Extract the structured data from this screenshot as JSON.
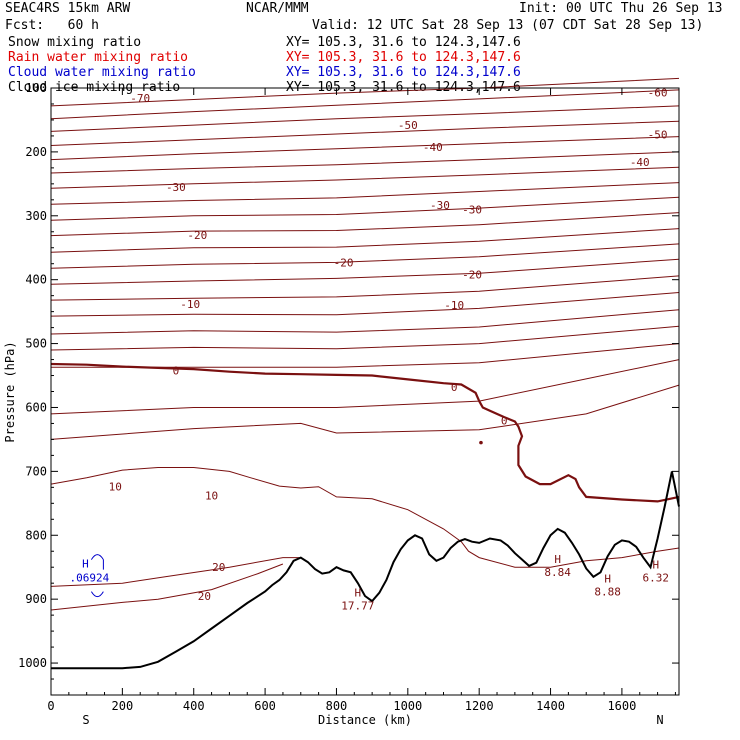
{
  "header": {
    "model": "SEAC4RS 15km ARW",
    "source": "NCAR/MMM",
    "init": "Init: 00 UTC Thu 26 Sep 13",
    "fcst": "Fcst:   60 h",
    "valid": "Valid: 12 UTC Sat 28 Sep 13 (07 CDT Sat 28 Sep 13)",
    "fields": [
      {
        "name": "Snow mixing ratio",
        "xy": "XY= 105.3, 31.6 to 124.3,147.6",
        "color": "#000000"
      },
      {
        "name": "Rain water mixing ratio",
        "xy": "XY= 105.3, 31.6 to 124.3,147.6",
        "color": "#e00000"
      },
      {
        "name": "Cloud water mixing ratio",
        "xy": "XY= 105.3, 31.6 to 124.3,147.6",
        "color": "#0000cc"
      },
      {
        "name": "Cloud ice mixing ratio",
        "xy": "XY= 105.3, 31.6 to 124.3,147.6",
        "color": "#000000"
      }
    ]
  },
  "chart_data": {
    "type": "line",
    "xlabel": "Distance (km)",
    "ylabel": "Pressure (hPa)",
    "xlim": [
      0,
      1760
    ],
    "ylim": [
      1050,
      100
    ],
    "xticks": [
      0,
      200,
      400,
      600,
      800,
      1000,
      1200,
      1400,
      1600
    ],
    "yticks": [
      200,
      300,
      400,
      500,
      600,
      700,
      800,
      900,
      1000
    ],
    "ytick_top_label": "100",
    "endpoint_labels": {
      "left": "S",
      "right": "N"
    },
    "contour_color": "#7a1010",
    "terrain_color": "#000000",
    "isotherms": [
      {
        "points": [
          [
            0,
            128
          ],
          [
            400,
            118
          ],
          [
            800,
            108
          ],
          [
            1200,
            100
          ],
          [
            1760,
            85
          ]
        ],
        "label": "-70",
        "label_at": [
          250,
          116
        ]
      },
      {
        "points": [
          [
            0,
            148
          ],
          [
            400,
            137
          ],
          [
            800,
            127
          ],
          [
            1200,
            117
          ],
          [
            1760,
            103
          ]
        ],
        "label": "-60",
        "label_at": [
          1700,
          107
        ]
      },
      {
        "points": [
          [
            0,
            168
          ],
          [
            400,
            158
          ],
          [
            800,
            148
          ],
          [
            1200,
            140
          ],
          [
            1760,
            128
          ]
        ]
      },
      {
        "points": [
          [
            0,
            190
          ],
          [
            400,
            181
          ],
          [
            800,
            172
          ],
          [
            1200,
            163
          ],
          [
            1760,
            152
          ]
        ],
        "label": "-50",
        "label_at": [
          1000,
          158
        ]
      },
      {
        "points": [
          [
            0,
            212
          ],
          [
            400,
            203
          ],
          [
            800,
            195
          ],
          [
            1200,
            187
          ],
          [
            1760,
            176
          ]
        ],
        "label": "-50",
        "label_at": [
          1700,
          173
        ]
      },
      {
        "points": [
          [
            0,
            233
          ],
          [
            400,
            226
          ],
          [
            800,
            220
          ],
          [
            1200,
            212
          ],
          [
            1760,
            200
          ]
        ],
        "label": "-40",
        "label_at": [
          1070,
          192
        ]
      },
      {
        "points": [
          [
            0,
            257
          ],
          [
            400,
            250
          ],
          [
            800,
            244
          ],
          [
            1200,
            236
          ],
          [
            1760,
            224
          ]
        ],
        "label": "-40",
        "label_at": [
          1650,
          216
        ]
      },
      {
        "points": [
          [
            0,
            282
          ],
          [
            400,
            276
          ],
          [
            800,
            272
          ],
          [
            1200,
            262
          ],
          [
            1760,
            248
          ]
        ],
        "label": "-30",
        "label_at": [
          350,
          255
        ]
      },
      {
        "points": [
          [
            0,
            307
          ],
          [
            400,
            300
          ],
          [
            800,
            298
          ],
          [
            1200,
            288
          ],
          [
            1760,
            271
          ]
        ],
        "label": "-30",
        "label_at": [
          1090,
          283
        ]
      },
      {
        "points": [
          [
            0,
            331
          ],
          [
            400,
            324
          ],
          [
            800,
            323
          ],
          [
            1200,
            314
          ],
          [
            1760,
            295
          ]
        ],
        "label": "-30",
        "label_at": [
          1180,
          290
        ]
      },
      {
        "points": [
          [
            0,
            357
          ],
          [
            400,
            350
          ],
          [
            800,
            349
          ],
          [
            1200,
            340
          ],
          [
            1760,
            320
          ]
        ],
        "label": "-20",
        "label_at": [
          410,
          330
        ]
      },
      {
        "points": [
          [
            0,
            382
          ],
          [
            400,
            376
          ],
          [
            800,
            373
          ],
          [
            1200,
            364
          ],
          [
            1760,
            344
          ]
        ],
        "label": "-20",
        "label_at": [
          820,
          373
        ]
      },
      {
        "points": [
          [
            0,
            407
          ],
          [
            400,
            402
          ],
          [
            800,
            398
          ],
          [
            1200,
            390
          ],
          [
            1760,
            368
          ]
        ],
        "label": "-20",
        "label_at": [
          1180,
          392
        ]
      },
      {
        "points": [
          [
            0,
            432
          ],
          [
            400,
            429
          ],
          [
            800,
            427
          ],
          [
            1200,
            418
          ],
          [
            1760,
            394
          ]
        ],
        "label": "-10",
        "label_at": [
          390,
          438
        ]
      },
      {
        "points": [
          [
            0,
            457
          ],
          [
            400,
            454
          ],
          [
            800,
            455
          ],
          [
            1200,
            445
          ],
          [
            1760,
            420
          ]
        ],
        "label": "-10",
        "label_at": [
          1130,
          440
        ]
      },
      {
        "points": [
          [
            0,
            485
          ],
          [
            400,
            480
          ],
          [
            800,
            482
          ],
          [
            1200,
            474
          ],
          [
            1760,
            447
          ]
        ]
      },
      {
        "points": [
          [
            0,
            510
          ],
          [
            400,
            506
          ],
          [
            800,
            508
          ],
          [
            1200,
            500
          ],
          [
            1760,
            473
          ]
        ]
      },
      {
        "points": [
          [
            0,
            537
          ],
          [
            400,
            537
          ],
          [
            800,
            537
          ],
          [
            1200,
            530
          ],
          [
            1760,
            500
          ]
        ]
      },
      {
        "points": [
          [
            0,
            610
          ],
          [
            400,
            600
          ],
          [
            800,
            600
          ],
          [
            1200,
            590
          ],
          [
            1760,
            525
          ]
        ]
      },
      {
        "points": [
          [
            0,
            650
          ],
          [
            400,
            633
          ],
          [
            700,
            625
          ],
          [
            800,
            640
          ],
          [
            1200,
            635
          ],
          [
            1500,
            610
          ],
          [
            1760,
            565
          ]
        ]
      },
      {
        "points": [
          [
            0,
            720
          ],
          [
            100,
            710
          ],
          [
            200,
            698
          ],
          [
            300,
            694
          ],
          [
            400,
            694
          ],
          [
            500,
            700
          ],
          [
            560,
            710
          ],
          [
            640,
            723
          ],
          [
            700,
            726
          ],
          [
            750,
            724
          ],
          [
            800,
            740
          ],
          [
            900,
            743
          ],
          [
            1000,
            760
          ],
          [
            1100,
            790
          ],
          [
            1150,
            810
          ],
          [
            1170,
            825
          ],
          [
            1200,
            835
          ],
          [
            1300,
            850
          ],
          [
            1400,
            850
          ],
          [
            1500,
            840
          ],
          [
            1600,
            835
          ],
          [
            1700,
            825
          ],
          [
            1760,
            820
          ]
        ],
        "label": "10",
        "label_at": [
          450,
          738
        ]
      },
      {
        "points": [
          [
            0,
            880
          ],
          [
            200,
            875
          ],
          [
            320,
            865
          ],
          [
            500,
            850
          ],
          [
            650,
            835
          ],
          [
            700,
            835
          ]
        ],
        "label": "20",
        "label_at": [
          470,
          850
        ]
      },
      {
        "points": [
          [
            0,
            917
          ],
          [
            200,
            905
          ],
          [
            300,
            900
          ],
          [
            450,
            885
          ],
          [
            580,
            860
          ],
          [
            650,
            845
          ]
        ],
        "label": "20",
        "label_at": [
          430,
          895
        ]
      }
    ],
    "zero_isotherm": {
      "points": [
        [
          0,
          532
        ],
        [
          100,
          533
        ],
        [
          200,
          536
        ],
        [
          300,
          538
        ],
        [
          400,
          540
        ],
        [
          500,
          544
        ],
        [
          600,
          547
        ],
        [
          700,
          548
        ],
        [
          800,
          549
        ],
        [
          900,
          550
        ],
        [
          1000,
          556
        ],
        [
          1100,
          562
        ],
        [
          1150,
          564
        ],
        [
          1190,
          577
        ],
        [
          1200,
          590
        ],
        [
          1210,
          600
        ],
        [
          1230,
          605
        ],
        [
          1270,
          615
        ],
        [
          1300,
          622
        ],
        [
          1310,
          630
        ],
        [
          1320,
          645
        ],
        [
          1310,
          660
        ],
        [
          1310,
          690
        ],
        [
          1330,
          708
        ],
        [
          1370,
          720
        ],
        [
          1400,
          720
        ],
        [
          1450,
          706
        ],
        [
          1470,
          712
        ],
        [
          1480,
          725
        ],
        [
          1500,
          740
        ],
        [
          1600,
          744
        ],
        [
          1700,
          747
        ],
        [
          1760,
          740
        ]
      ],
      "label": "0",
      "labels_at": [
        [
          350,
          542
        ],
        [
          1130,
          568
        ],
        [
          1270,
          620
        ]
      ],
      "dot": [
        1205,
        655
      ]
    },
    "ten_label_second": {
      "text": "10",
      "at": [
        180,
        724
      ]
    },
    "terrain": {
      "points": [
        [
          0,
          1008
        ],
        [
          100,
          1008
        ],
        [
          200,
          1008
        ],
        [
          250,
          1006
        ],
        [
          300,
          998
        ],
        [
          350,
          982
        ],
        [
          400,
          966
        ],
        [
          450,
          946
        ],
        [
          500,
          926
        ],
        [
          550,
          906
        ],
        [
          600,
          888
        ],
        [
          620,
          878
        ],
        [
          640,
          870
        ],
        [
          660,
          858
        ],
        [
          680,
          840
        ],
        [
          700,
          835
        ],
        [
          720,
          842
        ],
        [
          740,
          853
        ],
        [
          760,
          860
        ],
        [
          780,
          858
        ],
        [
          800,
          850
        ],
        [
          820,
          855
        ],
        [
          840,
          858
        ],
        [
          860,
          875
        ],
        [
          880,
          895
        ],
        [
          900,
          903
        ],
        [
          920,
          890
        ],
        [
          940,
          870
        ],
        [
          960,
          842
        ],
        [
          980,
          822
        ],
        [
          1000,
          808
        ],
        [
          1020,
          800
        ],
        [
          1040,
          805
        ],
        [
          1060,
          830
        ],
        [
          1080,
          840
        ],
        [
          1100,
          835
        ],
        [
          1120,
          820
        ],
        [
          1140,
          810
        ],
        [
          1160,
          806
        ],
        [
          1180,
          810
        ],
        [
          1200,
          812
        ],
        [
          1230,
          805
        ],
        [
          1260,
          808
        ],
        [
          1280,
          816
        ],
        [
          1300,
          828
        ],
        [
          1320,
          838
        ],
        [
          1340,
          848
        ],
        [
          1360,
          843
        ],
        [
          1380,
          820
        ],
        [
          1400,
          800
        ],
        [
          1420,
          790
        ],
        [
          1440,
          796
        ],
        [
          1460,
          812
        ],
        [
          1480,
          830
        ],
        [
          1500,
          852
        ],
        [
          1520,
          865
        ],
        [
          1540,
          858
        ],
        [
          1560,
          833
        ],
        [
          1580,
          815
        ],
        [
          1600,
          808
        ],
        [
          1620,
          810
        ],
        [
          1640,
          818
        ],
        [
          1660,
          835
        ],
        [
          1680,
          850
        ],
        [
          1700,
          805
        ],
        [
          1720,
          755
        ],
        [
          1740,
          700
        ],
        [
          1760,
          755
        ]
      ],
      "highs": [
        {
          "value": "17.77",
          "at": [
            860,
            902
          ]
        },
        {
          "value": "8.84",
          "at": [
            1420,
            850
          ]
        },
        {
          "value": "8.88",
          "at": [
            1560,
            880
          ]
        },
        {
          "value": "6.32",
          "at": [
            1695,
            858
          ]
        }
      ]
    },
    "cloud_water_high": {
      "value": ".06924",
      "at": [
        130,
        860
      ],
      "color": "#0000cc"
    },
    "high_symbol": "H"
  }
}
